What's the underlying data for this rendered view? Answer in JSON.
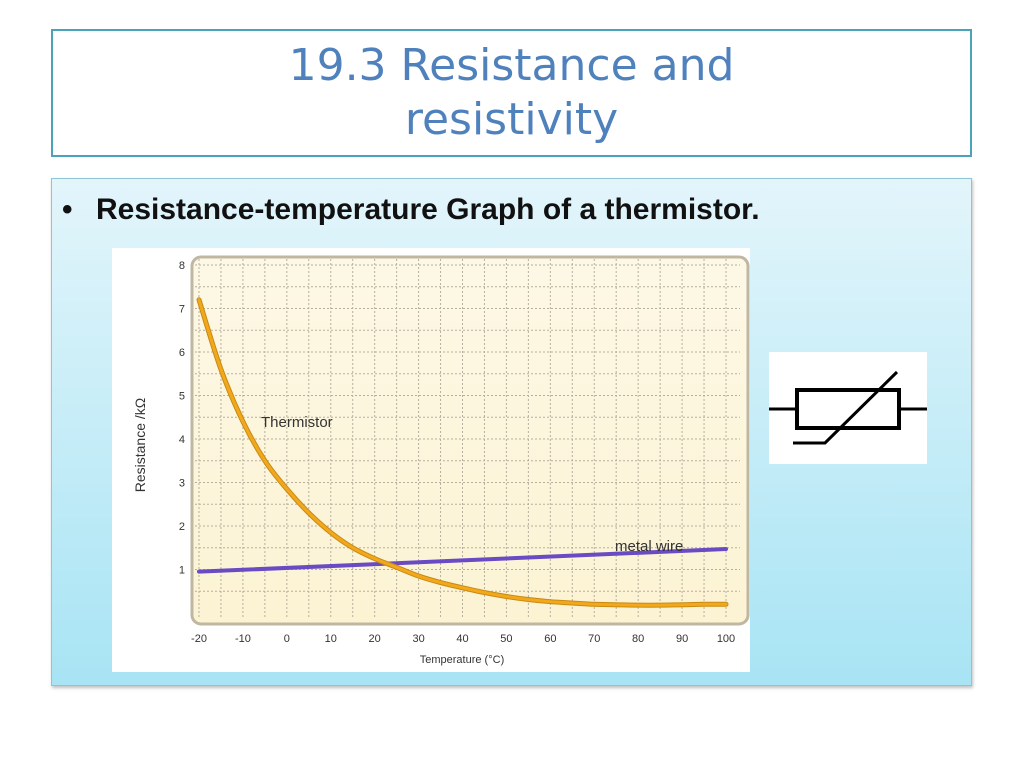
{
  "title": {
    "line1": "19.3 Resistance and",
    "line2": "resistivity"
  },
  "bullet": {
    "marker": "•",
    "text": "Resistance-temperature Graph of a thermistor."
  },
  "symbol": {
    "name": "thermistor-symbol-icon"
  },
  "chart_data": {
    "type": "line",
    "xlabel": "Temperature (°C)",
    "ylabel": "Resistance /kΩ",
    "xlim": [
      -20,
      100
    ],
    "ylim": [
      0,
      8
    ],
    "xticks": [
      -20,
      -10,
      0,
      10,
      20,
      30,
      40,
      50,
      60,
      70,
      80,
      90,
      100
    ],
    "yticks": [
      1,
      2,
      3,
      4,
      5,
      6,
      7,
      8
    ],
    "grid": true,
    "series": [
      {
        "name": "Thermistor",
        "color": "#f2a81d",
        "x": [
          -20,
          -15,
          -10,
          -5,
          0,
          5,
          10,
          15,
          20,
          25,
          30,
          35,
          40,
          45,
          50,
          55,
          60,
          65,
          70,
          75,
          80,
          85,
          90,
          95,
          100
        ],
        "y": [
          7.2,
          5.6,
          4.4,
          3.5,
          2.85,
          2.3,
          1.85,
          1.5,
          1.25,
          1.05,
          0.85,
          0.7,
          0.58,
          0.47,
          0.38,
          0.31,
          0.26,
          0.23,
          0.2,
          0.19,
          0.18,
          0.18,
          0.19,
          0.2,
          0.2
        ]
      },
      {
        "name": "metal wire",
        "color": "#6a4bc4",
        "x": [
          -20,
          100
        ],
        "y": [
          0.95,
          1.47
        ]
      }
    ]
  }
}
